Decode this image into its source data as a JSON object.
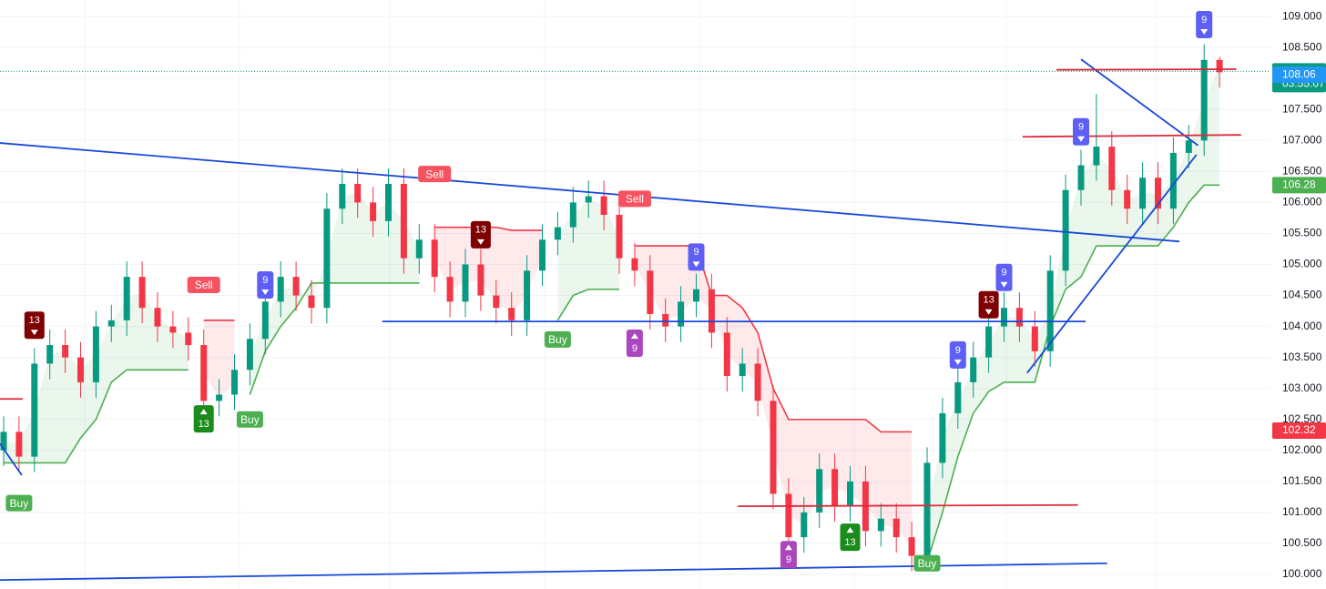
{
  "chart_data": {
    "type": "candlestick",
    "up_color": "#089981",
    "down_color": "#f23645",
    "open": [
      102.0,
      102.3,
      101.9,
      103.4,
      103.7,
      103.5,
      103.1,
      104.0,
      104.1,
      104.8,
      104.3,
      104.0,
      103.9,
      103.7,
      102.8,
      102.9,
      103.3,
      103.8,
      104.4,
      104.8,
      104.5,
      104.3,
      105.9,
      106.3,
      106.0,
      105.7,
      106.3,
      105.1,
      105.4,
      104.8,
      104.4,
      105.0,
      104.5,
      104.3,
      104.1,
      104.9,
      105.4,
      105.6,
      106.0,
      106.1,
      105.8,
      105.1,
      104.9,
      104.2,
      104.0,
      104.4,
      104.6,
      103.9,
      103.2,
      103.4,
      102.8,
      101.3,
      100.6,
      101.0,
      101.7,
      101.1,
      101.5,
      100.7,
      100.9,
      100.6,
      100.3,
      101.8,
      102.6,
      103.1,
      103.5,
      104.0,
      104.3,
      104.0,
      103.6,
      104.9,
      106.2,
      106.6,
      106.9,
      106.2,
      105.9,
      106.4,
      105.9,
      106.8,
      107.0,
      108.3
    ],
    "high": [
      102.55,
      102.55,
      103.65,
      103.95,
      103.95,
      103.75,
      104.25,
      104.35,
      105.05,
      105.05,
      104.55,
      104.25,
      104.15,
      103.95,
      103.15,
      103.55,
      104.05,
      104.65,
      105.05,
      105.05,
      104.75,
      106.15,
      106.55,
      106.55,
      106.25,
      106.55,
      106.55,
      105.65,
      105.65,
      105.05,
      105.25,
      105.25,
      104.75,
      104.55,
      105.15,
      105.65,
      105.85,
      106.25,
      106.35,
      106.35,
      106.05,
      105.35,
      105.15,
      104.45,
      104.65,
      104.85,
      104.85,
      104.15,
      103.65,
      103.65,
      103.05,
      101.55,
      101.25,
      101.95,
      101.95,
      101.75,
      101.75,
      101.15,
      101.15,
      100.85,
      102.05,
      102.85,
      103.35,
      103.75,
      104.25,
      104.55,
      104.55,
      104.25,
      105.15,
      106.45,
      106.85,
      107.75,
      107.15,
      106.45,
      106.65,
      106.65,
      107.05,
      107.25,
      108.55,
      108.35
    ],
    "low": [
      101.75,
      101.65,
      101.65,
      103.15,
      103.25,
      102.85,
      102.85,
      103.75,
      103.85,
      104.05,
      103.75,
      103.65,
      103.45,
      102.55,
      102.55,
      102.65,
      103.05,
      103.55,
      104.15,
      104.25,
      104.05,
      104.05,
      105.65,
      105.75,
      105.45,
      105.45,
      104.85,
      104.85,
      104.55,
      104.15,
      104.15,
      104.25,
      104.05,
      103.85,
      103.85,
      104.65,
      105.15,
      105.35,
      105.75,
      105.55,
      104.85,
      104.65,
      103.95,
      103.75,
      103.75,
      104.15,
      103.65,
      102.95,
      102.95,
      102.55,
      101.05,
      100.35,
      100.35,
      100.75,
      100.85,
      100.85,
      100.45,
      100.45,
      100.35,
      100.05,
      100.05,
      101.55,
      102.35,
      102.85,
      103.25,
      103.75,
      103.75,
      103.35,
      103.35,
      104.65,
      105.95,
      106.35,
      105.95,
      105.65,
      105.65,
      105.65,
      105.65,
      106.55,
      106.75,
      107.85
    ],
    "close": [
      102.3,
      101.9,
      103.4,
      103.7,
      103.5,
      103.1,
      104.0,
      104.1,
      104.8,
      104.3,
      104.0,
      103.9,
      103.7,
      102.8,
      102.9,
      103.3,
      103.8,
      104.4,
      104.8,
      104.5,
      104.3,
      105.9,
      106.3,
      106.0,
      105.7,
      106.3,
      105.1,
      105.4,
      104.8,
      104.4,
      105.0,
      104.5,
      104.3,
      104.1,
      104.9,
      105.4,
      105.6,
      106.0,
      106.1,
      105.8,
      105.1,
      104.9,
      104.2,
      104.0,
      104.4,
      104.6,
      103.9,
      103.2,
      103.4,
      102.8,
      101.3,
      100.6,
      101.0,
      101.7,
      101.1,
      101.5,
      100.7,
      100.9,
      100.6,
      100.3,
      101.8,
      102.6,
      103.1,
      103.5,
      104.0,
      104.3,
      104.0,
      103.6,
      104.9,
      106.2,
      106.6,
      106.9,
      106.2,
      105.9,
      106.4,
      105.9,
      106.8,
      107.0,
      108.3,
      108.1
    ],
    "series": [
      {
        "color": "#4caf50",
        "fill": "rgba(76,175,80,0.11)",
        "values": [
          101.8,
          101.8,
          101.8,
          101.8,
          101.8,
          102.2,
          102.5,
          103.1,
          103.3,
          103.3,
          103.3,
          103.3,
          103.3,
          null,
          null,
          null,
          102.9,
          103.6,
          104.0,
          104.3,
          104.7,
          104.7,
          104.7,
          104.7,
          104.7,
          104.7,
          104.7,
          104.7,
          null,
          null,
          null,
          null,
          null,
          null,
          null,
          null,
          104.1,
          104.5,
          104.6,
          104.6,
          104.6,
          null,
          null,
          null,
          null,
          null,
          null,
          null,
          null,
          null,
          null,
          null,
          null,
          null,
          null,
          null,
          null,
          null,
          null,
          null,
          100.2,
          101.0,
          101.9,
          102.6,
          102.95,
          103.1,
          103.1,
          103.1,
          104.0,
          104.6,
          104.8,
          105.3,
          105.3,
          105.3,
          105.3,
          105.3,
          105.6,
          106.0,
          106.28,
          106.28
        ]
      },
      {
        "color": "#f23645",
        "fill": "rgba(242,54,69,0.11)",
        "values": [
          null,
          null,
          null,
          null,
          null,
          null,
          null,
          null,
          null,
          null,
          null,
          null,
          null,
          104.1,
          104.1,
          104.1,
          null,
          null,
          null,
          null,
          null,
          null,
          null,
          null,
          null,
          null,
          null,
          null,
          105.6,
          105.6,
          105.6,
          105.6,
          105.6,
          105.55,
          105.55,
          105.55,
          null,
          null,
          null,
          null,
          null,
          105.3,
          105.3,
          105.3,
          105.3,
          105.3,
          104.5,
          104.5,
          104.3,
          103.9,
          103.0,
          102.5,
          102.5,
          102.5,
          102.5,
          102.5,
          102.5,
          102.3,
          102.3,
          102.3,
          null,
          null,
          null,
          null,
          null,
          null,
          null,
          null,
          null,
          null,
          null,
          null,
          null,
          null,
          null,
          null,
          null,
          null,
          null,
          null
        ]
      }
    ],
    "signals": [
      {
        "text": "Buy",
        "index": 1,
        "price": 101.15,
        "color": "#4caf50"
      },
      {
        "text": "13",
        "index": 2,
        "price": 104.02,
        "color": "#7f0000",
        "direction": "down"
      },
      {
        "text": "Sell",
        "index": 13,
        "price": 104.67,
        "color": "#f7525f"
      },
      {
        "text": "13",
        "index": 13,
        "price": 102.51,
        "color": "#1b8b1b",
        "direction": "up"
      },
      {
        "text": "Buy",
        "index": 16,
        "price": 102.5,
        "color": "#4caf50"
      },
      {
        "text": "9",
        "index": 17,
        "price": 104.67,
        "color": "#5d5ff5",
        "direction": "down"
      },
      {
        "text": "Sell",
        "index": 28,
        "price": 106.46,
        "color": "#f7525f"
      },
      {
        "text": "13",
        "index": 31,
        "price": 105.48,
        "color": "#7f0000",
        "direction": "down"
      },
      {
        "text": "Buy",
        "index": 36,
        "price": 103.79,
        "color": "#4caf50"
      },
      {
        "text": "Sell",
        "index": 41,
        "price": 106.06,
        "color": "#f7525f"
      },
      {
        "text": "9",
        "index": 41,
        "price": 103.73,
        "color": "#ab47bc",
        "direction": "up"
      },
      {
        "text": "9",
        "index": 45,
        "price": 105.12,
        "color": "#5d5ff5",
        "direction": "down"
      },
      {
        "text": "9",
        "index": 51,
        "price": 100.32,
        "color": "#ab47bc",
        "direction": "up"
      },
      {
        "text": "13",
        "index": 55,
        "price": 100.6,
        "color": "#1b8b1b",
        "direction": "up"
      },
      {
        "text": "Buy",
        "index": 60,
        "price": 100.18,
        "color": "#4caf50"
      },
      {
        "text": "9",
        "index": 62,
        "price": 103.54,
        "color": "#5d5ff5",
        "direction": "down"
      },
      {
        "text": "13",
        "index": 64,
        "price": 104.35,
        "color": "#7f0000",
        "direction": "down"
      },
      {
        "text": "9",
        "index": 65,
        "price": 104.79,
        "color": "#5d5ff5",
        "direction": "down"
      },
      {
        "text": "9",
        "index": 70,
        "price": 107.14,
        "color": "#5d5ff5",
        "direction": "down"
      },
      {
        "text": "9",
        "index": 78,
        "price": 108.87,
        "color": "#5d5ff5",
        "direction": "down"
      }
    ],
    "trendlines": [
      {
        "color": "#1848d8",
        "points": [
          [
            -0.24,
            106.96
          ],
          [
            76.4,
            105.37
          ]
        ]
      },
      {
        "color": "#1848d8",
        "points": [
          [
            24.6,
            104.08
          ],
          [
            70.3,
            104.08
          ]
        ]
      },
      {
        "color": "#1848d8",
        "points": [
          [
            -0.24,
            99.91
          ],
          [
            71.7,
            100.18
          ]
        ]
      },
      {
        "color": "#1848d8",
        "points": [
          [
            -0.24,
            102.11
          ],
          [
            1.18,
            101.6
          ]
        ]
      },
      {
        "color": "#1848d8",
        "points": [
          [
            66.5,
            103.25
          ],
          [
            77.5,
            106.77
          ]
        ]
      },
      {
        "color": "#1848d8",
        "points": [
          [
            70.0,
            108.31
          ],
          [
            77.6,
            106.92
          ]
        ]
      },
      {
        "color": "#e0283a",
        "points": [
          [
            68.4,
            108.14
          ],
          [
            80.1,
            108.15
          ]
        ]
      },
      {
        "color": "#e0283a",
        "points": [
          [
            66.2,
            107.06
          ],
          [
            80.4,
            107.09
          ]
        ]
      },
      {
        "color": "#e0283a",
        "points": [
          [
            47.7,
            101.1
          ],
          [
            69.8,
            101.12
          ]
        ]
      },
      {
        "color": "#e0283a",
        "points": [
          [
            -0.24,
            102.83
          ],
          [
            1.24,
            102.83
          ]
        ]
      }
    ],
    "price_tags": [
      {
        "value": 108.116,
        "sublabel": "03:55:07",
        "color": "#089981"
      },
      {
        "value": 108.06,
        "color": "#2196f3"
      },
      {
        "value": 106.28,
        "color": "#4caf50"
      },
      {
        "value": 102.32,
        "color": "#f23645"
      }
    ],
    "ylim": [
      99.765,
      109.266
    ],
    "yticks": [
      {
        "value": 100,
        "label": "100.000"
      },
      {
        "value": 100.5,
        "label": "100.500"
      },
      {
        "value": 101,
        "label": "101.000"
      },
      {
        "value": 101.5,
        "label": "101.500"
      },
      {
        "value": 102,
        "label": "102.000"
      },
      {
        "value": 102.5,
        "label": "102.500"
      },
      {
        "value": 103,
        "label": "103.000"
      },
      {
        "value": 103.5,
        "label": "103.500"
      },
      {
        "value": 104,
        "label": "104.000"
      },
      {
        "value": 104.5,
        "label": "104.500"
      },
      {
        "value": 105,
        "label": "105.000"
      },
      {
        "value": 105.5,
        "label": "105.500"
      },
      {
        "value": 106,
        "label": "106.000"
      },
      {
        "value": 106.5,
        "label": "106.500"
      },
      {
        "value": 107,
        "label": "107.000"
      },
      {
        "value": 107.5,
        "label": "107.500"
      },
      {
        "value": 108,
        "label": "108.000"
      },
      {
        "value": 108.5,
        "label": "108.500"
      },
      {
        "value": 109,
        "label": "109.000"
      }
    ],
    "grid": true
  }
}
